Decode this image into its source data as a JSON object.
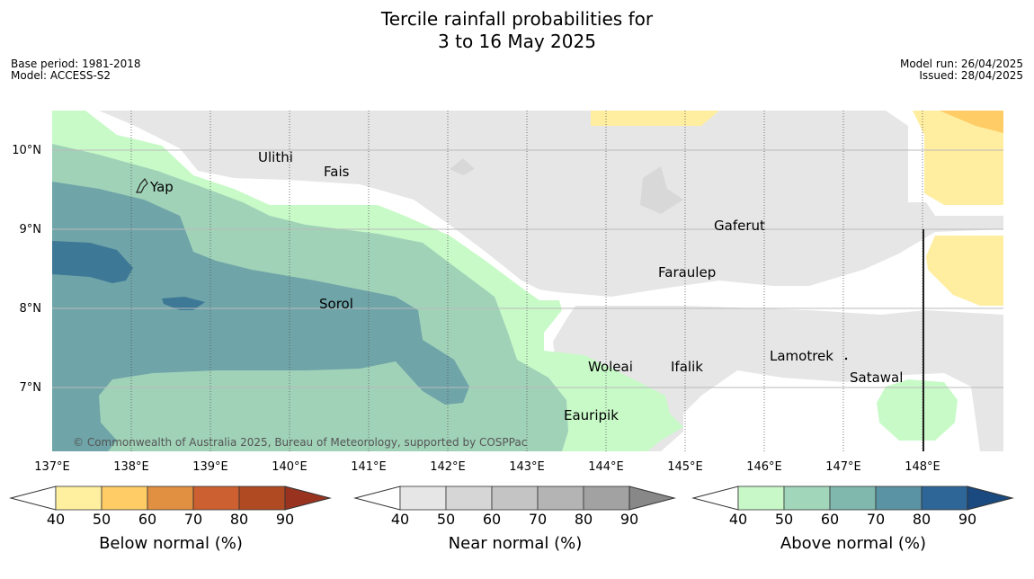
{
  "header": {
    "title_line1": "Tercile rainfall probabilities for",
    "title_line2": "3 to 16 May 2025",
    "base_period": "Base period: 1981-2018",
    "model": "Model: ACCESS-S2",
    "model_run": "Model run: 26/04/2025",
    "issued": "Issued: 28/04/2025"
  },
  "map": {
    "lat_labels": [
      "10°N",
      "9°N",
      "8°N",
      "7°N"
    ],
    "lon_labels": [
      "137°E",
      "138°E",
      "139°E",
      "140°E",
      "141°E",
      "142°E",
      "143°E",
      "144°E",
      "145°E",
      "146°E",
      "147°E",
      "148°E"
    ],
    "places": [
      {
        "name": "Ulithi"
      },
      {
        "name": "Fais"
      },
      {
        "name": "Yap"
      },
      {
        "name": "Gaferut"
      },
      {
        "name": "Faraulep"
      },
      {
        "name": "Sorol"
      },
      {
        "name": "Woleai"
      },
      {
        "name": "Ifalik"
      },
      {
        "name": "Lamotrek"
      },
      {
        "name": "Satawal"
      },
      {
        "name": "Eauripik"
      }
    ],
    "copyright": "© Commonwealth of Australia 2025, Bureau of Meteorology, supported by COSPPac"
  },
  "colorbars": [
    {
      "label": "Below normal (%)",
      "ticks": [
        "40",
        "50",
        "60",
        "70",
        "80",
        "90"
      ],
      "colors": [
        "#fff0a0",
        "#ffcc66",
        "#e09040",
        "#cc6030",
        "#b04a22",
        "#993320"
      ]
    },
    {
      "label": "Near normal (%)",
      "ticks": [
        "40",
        "50",
        "60",
        "70",
        "80",
        "90"
      ],
      "colors": [
        "#e6e6e6",
        "#d6d6d6",
        "#c4c4c4",
        "#b4b4b4",
        "#a2a2a2",
        "#888888"
      ]
    },
    {
      "label": "Above normal (%)",
      "ticks": [
        "40",
        "50",
        "60",
        "70",
        "80",
        "90"
      ],
      "colors": [
        "#c8f7c8",
        "#a2d6bb",
        "#80b8ad",
        "#5a94a4",
        "#2e6698",
        "#1a4a80"
      ]
    }
  ],
  "colors": {
    "near_normal": "#e6e6e6",
    "below_40_50": "#ffeea0",
    "below_50_60": "#ffcc66",
    "above_40_50": "#c8fac8",
    "above_50_60": "#a0d2b8",
    "above_60_70": "#6fa4a8",
    "above_70_80": "#3d7896"
  }
}
